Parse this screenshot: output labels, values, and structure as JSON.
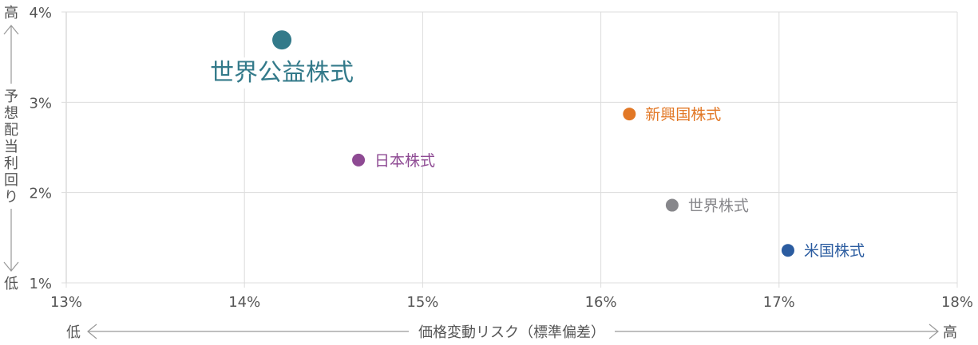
{
  "chart_data": {
    "type": "scatter",
    "xlabel": "価格変動リスク（標準偏差）",
    "xlabel_low": "低",
    "xlabel_high": "高",
    "ylabel": "予想配当利回り",
    "ylabel_low": "低",
    "ylabel_high": "高",
    "xlim": [
      13,
      18
    ],
    "ylim": [
      1,
      4
    ],
    "x_ticks": [
      "13%",
      "14%",
      "15%",
      "16%",
      "17%",
      "18%"
    ],
    "y_ticks": [
      "1%",
      "2%",
      "3%",
      "4%"
    ],
    "grid": true,
    "points": [
      {
        "label": "世界公益株式",
        "x": 14.21,
        "y": 3.69,
        "color": "#337a8a",
        "highlight": true
      },
      {
        "label": "新興国株式",
        "x": 16.16,
        "y": 2.87,
        "color": "#e27826"
      },
      {
        "label": "日本株式",
        "x": 14.64,
        "y": 2.36,
        "color": "#8e4a93"
      },
      {
        "label": "世界株式",
        "x": 16.4,
        "y": 1.86,
        "color": "#87878b"
      },
      {
        "label": "米国株式",
        "x": 17.05,
        "y": 1.36,
        "color": "#2b5ca0"
      }
    ]
  }
}
